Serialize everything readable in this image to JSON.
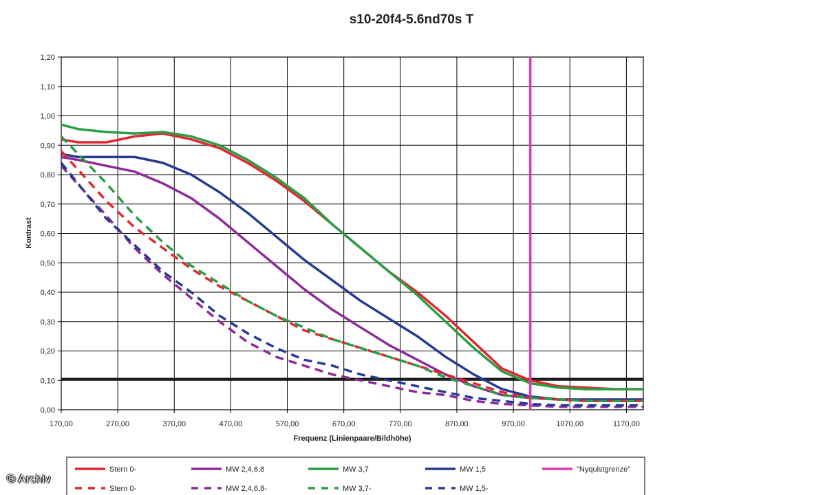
{
  "chart_data": {
    "type": "line",
    "title": "s10-20f4-5.6nd70s T",
    "xlabel": "Frequenz (Linienpaare/Bildhöhe)",
    "ylabel": "Kontrast",
    "xlim": [
      170,
      1200
    ],
    "ylim": [
      0,
      1.2
    ],
    "x_ticks": [
      "170,00",
      "270,00",
      "370,00",
      "470,00",
      "570,00",
      "670,00",
      "770,00",
      "870,00",
      "970,00",
      "1070,00",
      "1170,00"
    ],
    "y_ticks": [
      "0,00",
      "0,10",
      "0,20",
      "0,30",
      "0,40",
      "0,50",
      "0,60",
      "0,70",
      "0,80",
      "0,90",
      "1,00",
      "1,10",
      "1,20"
    ],
    "grid": true,
    "legend_position": "bottom",
    "threshold_line": 0.105,
    "series": [
      {
        "name": "Stern 0-",
        "color": "#e0282e",
        "dash": false,
        "x": [
          170,
          200,
          250,
          300,
          350,
          400,
          450,
          500,
          550,
          600,
          650,
          700,
          750,
          800,
          850,
          900,
          950,
          1000,
          1050,
          1100,
          1150,
          1200
        ],
        "y": [
          0.92,
          0.91,
          0.91,
          0.93,
          0.94,
          0.92,
          0.89,
          0.84,
          0.78,
          0.71,
          0.63,
          0.55,
          0.47,
          0.4,
          0.32,
          0.23,
          0.14,
          0.1,
          0.08,
          0.075,
          0.07,
          0.07
        ]
      },
      {
        "name": "MW 2,4,6,8",
        "color": "#8e2a99",
        "dash": false,
        "x": [
          170,
          200,
          250,
          300,
          350,
          400,
          450,
          500,
          550,
          600,
          650,
          700,
          750,
          800,
          850,
          900,
          950,
          1000,
          1050,
          1100,
          1150,
          1200
        ],
        "y": [
          0.86,
          0.85,
          0.83,
          0.81,
          0.77,
          0.72,
          0.65,
          0.57,
          0.49,
          0.41,
          0.34,
          0.28,
          0.22,
          0.17,
          0.12,
          0.08,
          0.05,
          0.04,
          0.035,
          0.03,
          0.03,
          0.03
        ]
      },
      {
        "name": "MW 3,7",
        "color": "#2a9d45",
        "dash": false,
        "x": [
          170,
          200,
          250,
          300,
          350,
          400,
          450,
          500,
          550,
          600,
          650,
          700,
          750,
          800,
          850,
          900,
          950,
          1000,
          1050,
          1100,
          1150,
          1200
        ],
        "y": [
          0.97,
          0.955,
          0.945,
          0.94,
          0.945,
          0.93,
          0.9,
          0.85,
          0.79,
          0.72,
          0.63,
          0.55,
          0.47,
          0.39,
          0.3,
          0.21,
          0.13,
          0.09,
          0.075,
          0.07,
          0.07,
          0.07
        ]
      },
      {
        "name": "MW 1,5",
        "color": "#263b8f",
        "dash": false,
        "x": [
          170,
          200,
          250,
          300,
          350,
          400,
          450,
          500,
          550,
          600,
          650,
          700,
          750,
          800,
          850,
          900,
          950,
          1000,
          1050,
          1100,
          1150,
          1200
        ],
        "y": [
          0.87,
          0.86,
          0.86,
          0.86,
          0.84,
          0.8,
          0.74,
          0.67,
          0.59,
          0.51,
          0.44,
          0.37,
          0.31,
          0.25,
          0.18,
          0.12,
          0.07,
          0.045,
          0.035,
          0.035,
          0.035,
          0.035
        ]
      },
      {
        "name": "\"Nyquistgrenze\"",
        "color": "#e23aa7",
        "dash": false,
        "vertical": true,
        "x": [
          1000,
          1000
        ],
        "y": [
          0,
          1.2
        ]
      },
      {
        "name": "Stern 0-",
        "color": "#e0282e",
        "dash": true,
        "x": [
          170,
          250,
          300,
          350,
          400,
          450,
          500,
          550,
          600,
          650,
          700,
          750,
          800,
          850,
          900,
          950,
          1000,
          1050,
          1100,
          1150,
          1200
        ],
        "y": [
          0.88,
          0.71,
          0.62,
          0.55,
          0.48,
          0.42,
          0.37,
          0.32,
          0.27,
          0.24,
          0.21,
          0.18,
          0.15,
          0.12,
          0.09,
          0.06,
          0.04,
          0.035,
          0.03,
          0.03,
          0.03
        ]
      },
      {
        "name": "MW 2,4,6,8-",
        "color": "#8e2a99",
        "dash": true,
        "x": [
          170,
          250,
          300,
          350,
          400,
          450,
          500,
          550,
          600,
          650,
          700,
          750,
          800,
          850,
          900,
          950,
          1000,
          1050,
          1100,
          1150,
          1200
        ],
        "y": [
          0.83,
          0.66,
          0.55,
          0.46,
          0.38,
          0.3,
          0.23,
          0.18,
          0.15,
          0.12,
          0.1,
          0.08,
          0.06,
          0.05,
          0.03,
          0.02,
          0.015,
          0.01,
          0.01,
          0.01,
          0.01
        ]
      },
      {
        "name": "MW 3,7-",
        "color": "#2a9d45",
        "dash": true,
        "x": [
          170,
          250,
          300,
          350,
          400,
          450,
          500,
          550,
          600,
          650,
          700,
          750,
          800,
          850,
          900,
          950,
          1000,
          1050,
          1100,
          1150,
          1200
        ],
        "y": [
          0.93,
          0.77,
          0.66,
          0.57,
          0.49,
          0.43,
          0.37,
          0.32,
          0.28,
          0.24,
          0.21,
          0.18,
          0.15,
          0.11,
          0.08,
          0.05,
          0.04,
          0.035,
          0.03,
          0.03,
          0.03
        ]
      },
      {
        "name": "MW 1,5-",
        "color": "#263b8f",
        "dash": true,
        "x": [
          170,
          250,
          300,
          350,
          400,
          450,
          500,
          550,
          600,
          650,
          700,
          750,
          800,
          850,
          900,
          950,
          1000,
          1050,
          1100,
          1150,
          1200
        ],
        "y": [
          0.84,
          0.65,
          0.56,
          0.47,
          0.4,
          0.32,
          0.26,
          0.21,
          0.17,
          0.15,
          0.12,
          0.1,
          0.08,
          0.06,
          0.04,
          0.03,
          0.02,
          0.015,
          0.015,
          0.015,
          0.015
        ]
      }
    ]
  },
  "watermark": "© Archiv"
}
